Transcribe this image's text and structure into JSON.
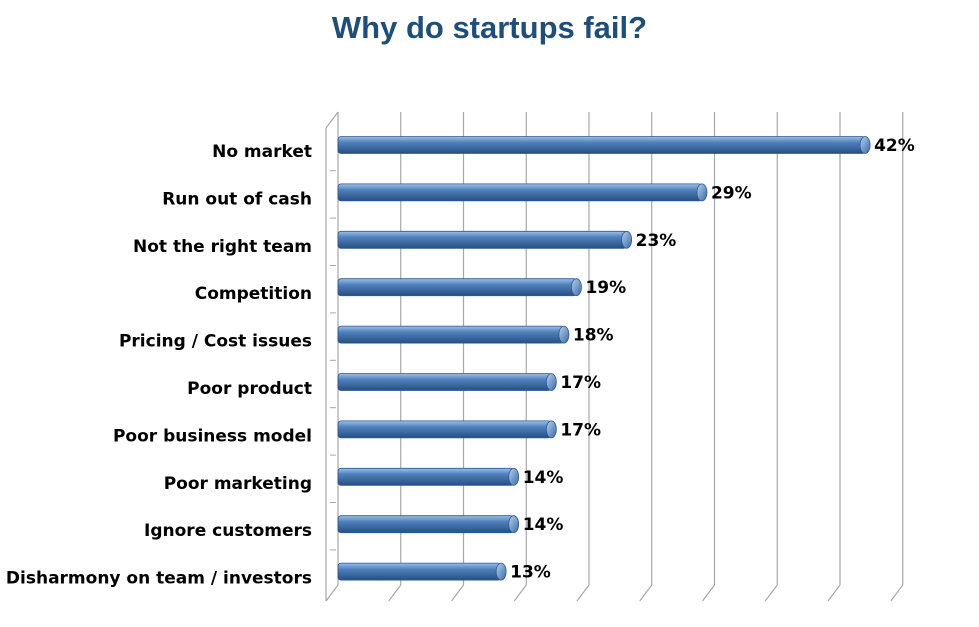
{
  "chart_data": {
    "type": "bar",
    "orientation": "horizontal",
    "title": "Why do startups fail?",
    "categories": [
      "No market",
      "Run out of cash",
      "Not the right team",
      "Competition",
      "Pricing / Cost issues",
      "Poor product",
      "Poor business model",
      "Poor marketing",
      "Ignore customers",
      "Disharmony on team / investors"
    ],
    "values": [
      42,
      29,
      23,
      19,
      18,
      17,
      17,
      14,
      14,
      13
    ],
    "value_labels": [
      "42%",
      "29%",
      "23%",
      "19%",
      "18%",
      "17%",
      "17%",
      "14%",
      "14%",
      "13%"
    ],
    "xlim": [
      0,
      45
    ],
    "grid": true,
    "bar_color": "#4f81bd",
    "title_color": "#1f4e79"
  }
}
